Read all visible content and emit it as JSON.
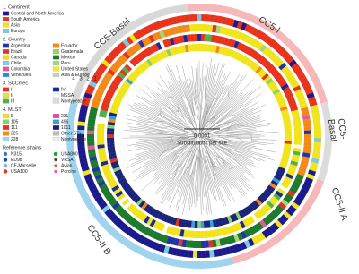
{
  "legend": {
    "sections": [
      {
        "title": "1. Continent",
        "columns": 1,
        "items": [
          {
            "label": "Central and North America",
            "color": "#1a1a8c"
          },
          {
            "label": "South America",
            "color": "#e8331c"
          },
          {
            "label": "Asia",
            "color": "#f2e41b"
          },
          {
            "label": "Europe",
            "color": "#7ec8e3"
          }
        ]
      },
      {
        "title": "2. Country",
        "columns": 2,
        "items": [
          {
            "label": "Argentina",
            "color": "#2233aa"
          },
          {
            "label": "Ecuador",
            "color": "#f28a1a"
          },
          {
            "label": "Brazil",
            "color": "#e8331c"
          },
          {
            "label": "Guatemala",
            "color": "#9bd45a"
          },
          {
            "label": "Canada",
            "color": "#f7d91a"
          },
          {
            "label": "Mexico",
            "color": "#1d7a2a"
          },
          {
            "label": "Chile",
            "color": "#7ecbea"
          },
          {
            "label": "Peru",
            "color": "#a7d57a"
          },
          {
            "label": "Colombia",
            "color": "#e6579a"
          },
          {
            "label": "United States",
            "color": "#f5ea2a"
          },
          {
            "label": "Venezuela",
            "color": "#1f8fd6"
          },
          {
            "label": "Asia & Europe",
            "color": "#cccccc"
          }
        ]
      },
      {
        "title": "3. SCCmec",
        "columns": 2,
        "items": [
          {
            "label": "I",
            "color": "#e8331c"
          },
          {
            "label": "IV",
            "color": "#1a2a9a"
          },
          {
            "label": "II",
            "color": "#f2e41b"
          },
          {
            "label": "MSSA",
            "color": "#ffffff"
          },
          {
            "label": "III",
            "color": "#52b04a"
          },
          {
            "label": "Nontypeable",
            "color": "#dddddd"
          }
        ]
      },
      {
        "title": "4. MLST",
        "columns": 2,
        "items": [
          {
            "label": "5",
            "color": "#f2e41b"
          },
          {
            "label": "231",
            "color": "#e64aa0"
          },
          {
            "label": "105",
            "color": "#8ad16a"
          },
          {
            "label": "496",
            "color": "#35a0dc"
          },
          {
            "label": "111",
            "color": "#e8331c"
          },
          {
            "label": "1011",
            "color": "#1a237a"
          },
          {
            "label": "225",
            "color": "#f28a1a"
          },
          {
            "label": "Other STs",
            "color": "#bbbbbb"
          },
          {
            "label": "228",
            "color": "#9ad8ee"
          },
          {
            "label": "Nontypeable",
            "color": "#eeeeee"
          }
        ]
      },
      {
        "title": "Reference strains",
        "columns": 2,
        "items": [
          {
            "label": "N315",
            "color": "#3c78c8",
            "shape": "circle"
          },
          {
            "label": "USA800",
            "color": "#2e9a3e",
            "shape": "circle"
          },
          {
            "label": "ED98",
            "color": "#1a4aa0",
            "shape": "circle"
          },
          {
            "label": "VRSA",
            "color": "#333333",
            "shape": "star"
          },
          {
            "label": "CF-Marseille",
            "color": "#7ab8e0",
            "shape": "circle"
          },
          {
            "label": "Avian",
            "color": "#d2691e",
            "shape": "star"
          },
          {
            "label": "USA100",
            "color": "#e8331c",
            "shape": "circle"
          },
          {
            "label": "Porcine",
            "color": "#e64aa0",
            "shape": "star"
          }
        ]
      }
    ]
  },
  "clades": [
    {
      "lines": [
        "CC5-Basal"
      ]
    },
    {
      "lines": [
        "CC5-I"
      ]
    },
    {
      "lines": [
        "CC5-",
        "Basal"
      ]
    },
    {
      "lines": [
        "CC5-II A"
      ]
    },
    {
      "lines": [
        "CC5-II B"
      ]
    }
  ],
  "ring_numbers": [
    "4",
    "3",
    "2",
    "1"
  ],
  "scale": {
    "value": "0.0001",
    "unit": "Substitutions per site"
  }
}
